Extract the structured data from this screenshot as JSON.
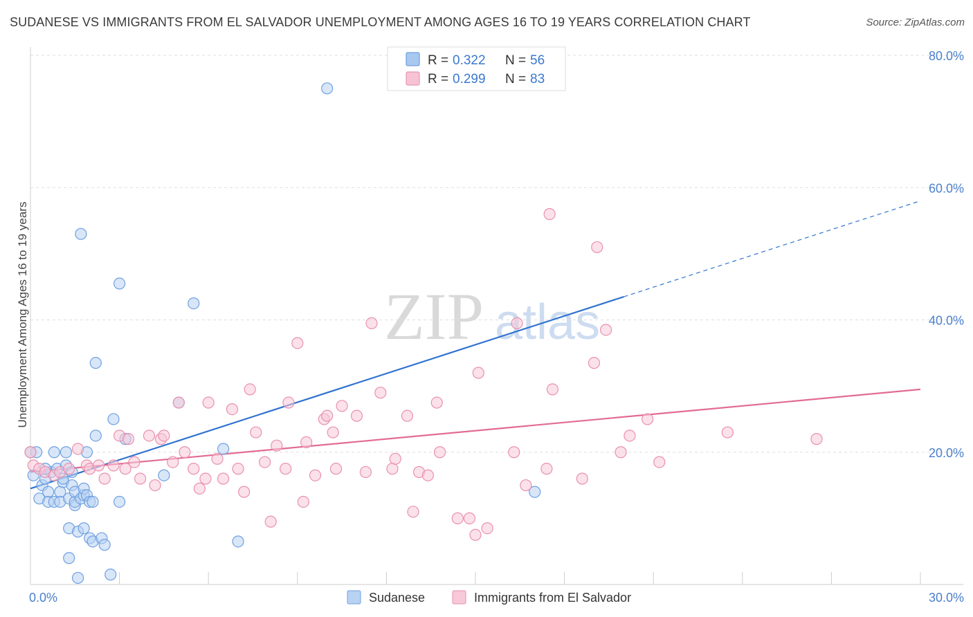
{
  "title": "SUDANESE VS IMMIGRANTS FROM EL SALVADOR UNEMPLOYMENT AMONG AGES 16 TO 19 YEARS CORRELATION CHART",
  "source": "Source: ZipAtlas.com",
  "watermark": {
    "zip": "ZIP",
    "atlas": "atlas"
  },
  "legend": {
    "rows": [
      {
        "r_label": "R =",
        "r_value": "0.322",
        "n_label": "N =",
        "n_value": "56",
        "color": "#a9c8f0",
        "stroke": "#5a8fd8"
      },
      {
        "r_label": "R =",
        "r_value": "0.299",
        "n_label": "N =",
        "n_value": "83",
        "color": "#f7c3d4",
        "stroke": "#e28aa6"
      }
    ]
  },
  "chart_data": {
    "type": "scatter",
    "title": "SUDANESE VS IMMIGRANTS FROM EL SALVADOR UNEMPLOYMENT AMONG AGES 16 TO 19 YEARS CORRELATION CHART",
    "xlabel": "",
    "ylabel": "Unemployment Among Ages 16 to 19 years",
    "xlim": [
      0,
      30
    ],
    "ylim": [
      0,
      80
    ],
    "x_tick_labels": [
      "0.0%",
      "30.0%"
    ],
    "y_ticks": [
      20,
      40,
      60,
      80
    ],
    "y_tick_labels": [
      "20.0%",
      "40.0%",
      "60.0%",
      "80.0%"
    ],
    "grid": true,
    "legend_position": "bottom",
    "series": [
      {
        "name": "Sudanese",
        "color": "#6fa0e0",
        "fill": "#b8d2f2",
        "trend": {
          "x0": 0,
          "y0": 14.5,
          "x1": 20,
          "y1": 43.5,
          "dashed_to_x": 30,
          "dashed_to_y": 58.0,
          "color": "#2f72d0"
        },
        "points": [
          [
            0.1,
            16.5
          ],
          [
            0.2,
            20.0
          ],
          [
            0.3,
            13.0
          ],
          [
            0.4,
            15.0
          ],
          [
            0.5,
            16.0
          ],
          [
            0.6,
            14.0
          ],
          [
            0.6,
            12.5
          ],
          [
            0.7,
            17.0
          ],
          [
            0.8,
            20.0
          ],
          [
            0.8,
            12.5
          ],
          [
            0.9,
            17.5
          ],
          [
            1.0,
            14.0
          ],
          [
            1.0,
            12.5
          ],
          [
            1.1,
            15.5
          ],
          [
            1.1,
            16.0
          ],
          [
            1.2,
            18.0
          ],
          [
            1.2,
            20.0
          ],
          [
            1.3,
            13.0
          ],
          [
            1.3,
            8.5
          ],
          [
            1.3,
            4.0
          ],
          [
            1.4,
            17.0
          ],
          [
            1.4,
            15.0
          ],
          [
            1.5,
            12.0
          ],
          [
            1.5,
            12.5
          ],
          [
            1.5,
            14.0
          ],
          [
            1.6,
            8.0
          ],
          [
            1.6,
            1.0
          ],
          [
            1.7,
            53.0
          ],
          [
            1.7,
            13.0
          ],
          [
            1.8,
            13.5
          ],
          [
            1.8,
            8.5
          ],
          [
            1.8,
            14.5
          ],
          [
            1.9,
            13.5
          ],
          [
            1.9,
            20.0
          ],
          [
            2.0,
            7.0
          ],
          [
            2.0,
            12.5
          ],
          [
            2.1,
            12.5
          ],
          [
            2.1,
            6.5
          ],
          [
            2.2,
            22.5
          ],
          [
            2.2,
            33.5
          ],
          [
            2.4,
            7.0
          ],
          [
            2.5,
            6.0
          ],
          [
            2.7,
            1.5
          ],
          [
            2.8,
            25.0
          ],
          [
            3.0,
            45.5
          ],
          [
            3.0,
            12.5
          ],
          [
            3.2,
            22.0
          ],
          [
            4.5,
            16.5
          ],
          [
            5.0,
            27.5
          ],
          [
            5.5,
            42.5
          ],
          [
            6.5,
            20.5
          ],
          [
            7.0,
            6.5
          ],
          [
            10.0,
            75.0
          ],
          [
            17.0,
            14.0
          ],
          [
            0.0,
            20.0
          ],
          [
            0.5,
            17.5
          ]
        ]
      },
      {
        "name": "Immigrants from El Salvador",
        "color": "#e990ad",
        "fill": "#f8c8d8",
        "trend": {
          "x0": 0,
          "y0": 17.0,
          "x1": 30,
          "y1": 29.5,
          "color": "#e26b93"
        },
        "points": [
          [
            0.1,
            18.0
          ],
          [
            0.3,
            17.5
          ],
          [
            0.5,
            17.0
          ],
          [
            0.8,
            16.5
          ],
          [
            1.0,
            17.0
          ],
          [
            1.3,
            17.5
          ],
          [
            1.6,
            20.5
          ],
          [
            1.9,
            18.0
          ],
          [
            2.0,
            17.5
          ],
          [
            2.3,
            18.0
          ],
          [
            2.5,
            16.0
          ],
          [
            2.8,
            18.0
          ],
          [
            3.0,
            22.5
          ],
          [
            3.2,
            17.5
          ],
          [
            3.3,
            22.0
          ],
          [
            3.5,
            18.5
          ],
          [
            3.7,
            16.0
          ],
          [
            4.0,
            22.5
          ],
          [
            4.2,
            15.0
          ],
          [
            4.4,
            22.0
          ],
          [
            4.5,
            22.5
          ],
          [
            4.8,
            18.5
          ],
          [
            5.0,
            27.5
          ],
          [
            5.2,
            20.0
          ],
          [
            5.5,
            17.5
          ],
          [
            5.7,
            14.5
          ],
          [
            5.9,
            16.0
          ],
          [
            6.0,
            27.5
          ],
          [
            6.3,
            19.0
          ],
          [
            6.5,
            16.0
          ],
          [
            6.8,
            26.5
          ],
          [
            7.0,
            17.5
          ],
          [
            7.2,
            14.0
          ],
          [
            7.4,
            29.5
          ],
          [
            7.6,
            23.0
          ],
          [
            7.9,
            18.5
          ],
          [
            8.1,
            9.5
          ],
          [
            8.3,
            21.0
          ],
          [
            8.6,
            17.5
          ],
          [
            8.7,
            27.5
          ],
          [
            9.0,
            36.5
          ],
          [
            9.2,
            12.5
          ],
          [
            9.3,
            21.5
          ],
          [
            9.6,
            16.5
          ],
          [
            9.9,
            25.0
          ],
          [
            10.0,
            25.5
          ],
          [
            10.2,
            23.0
          ],
          [
            10.3,
            17.5
          ],
          [
            10.5,
            27.0
          ],
          [
            11.0,
            25.5
          ],
          [
            11.3,
            17.0
          ],
          [
            11.5,
            39.5
          ],
          [
            11.8,
            29.0
          ],
          [
            12.2,
            17.5
          ],
          [
            12.3,
            19.0
          ],
          [
            12.7,
            25.5
          ],
          [
            12.9,
            11.0
          ],
          [
            13.1,
            17.0
          ],
          [
            13.4,
            16.5
          ],
          [
            13.7,
            27.5
          ],
          [
            13.8,
            20.0
          ],
          [
            14.4,
            10.0
          ],
          [
            14.8,
            10.0
          ],
          [
            15.0,
            7.5
          ],
          [
            15.1,
            32.0
          ],
          [
            15.4,
            8.5
          ],
          [
            16.3,
            20.0
          ],
          [
            16.4,
            39.5
          ],
          [
            16.7,
            15.0
          ],
          [
            17.4,
            17.5
          ],
          [
            17.5,
            56.0
          ],
          [
            17.6,
            29.5
          ],
          [
            18.6,
            16.0
          ],
          [
            19.0,
            33.5
          ],
          [
            19.1,
            51.0
          ],
          [
            19.4,
            38.5
          ],
          [
            19.9,
            20.0
          ],
          [
            20.2,
            22.5
          ],
          [
            20.8,
            25.0
          ],
          [
            21.2,
            18.5
          ],
          [
            23.5,
            23.0
          ],
          [
            26.5,
            22.0
          ],
          [
            0.0,
            20.0
          ]
        ]
      }
    ]
  }
}
